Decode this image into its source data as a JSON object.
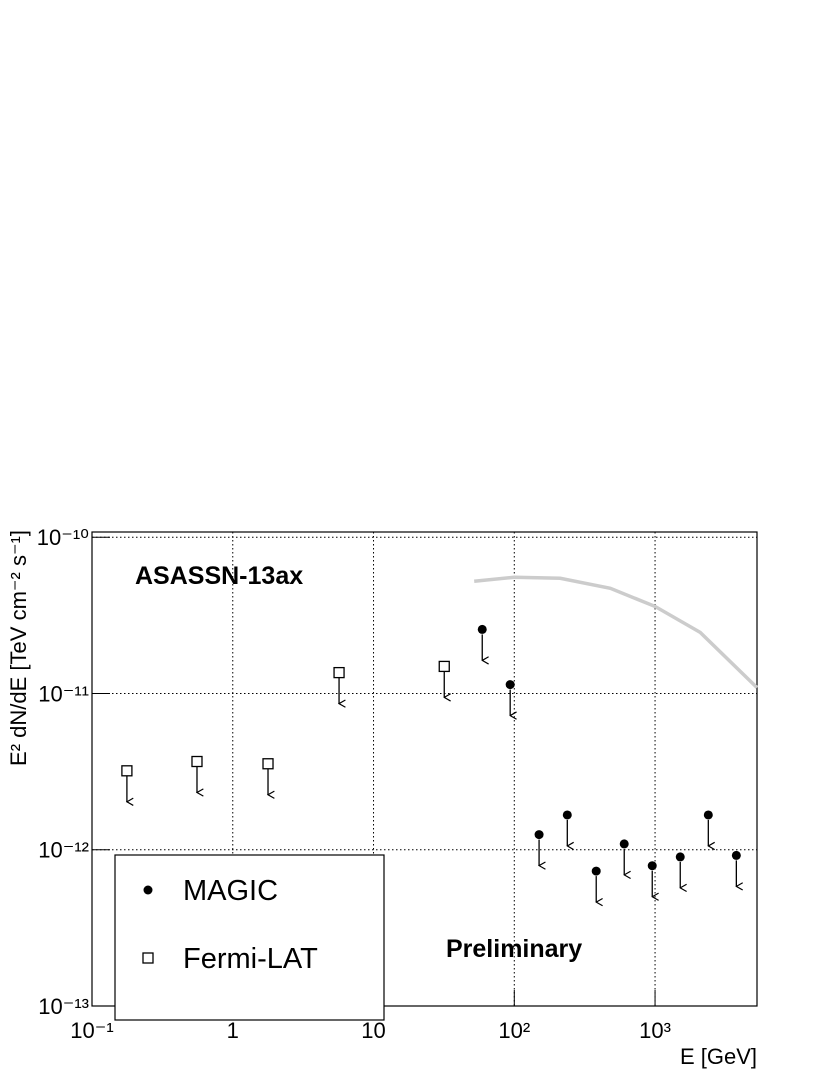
{
  "chart_data": {
    "type": "scatter",
    "annotations": [
      "ASASSN-13ax",
      "Preliminary"
    ],
    "xlabel": "E [GeV]",
    "ylabel": "E² dN/dE [TeV cm⁻² s⁻¹]",
    "log_x": true,
    "log_y": true,
    "grid": true,
    "upper_limits": true,
    "legend": "lower left",
    "xlim": [
      0.1,
      5300
    ],
    "ylim": [
      1e-13,
      1.08e-10
    ],
    "xticks": [
      {
        "value": 0.1,
        "label": "10⁻¹"
      },
      1,
      10,
      {
        "value": 100,
        "label": "10²"
      },
      {
        "value": 1000,
        "label": "10³"
      }
    ],
    "yticks": [
      {
        "value": 1e-13,
        "label": "10⁻¹³"
      },
      {
        "value": 1e-12,
        "label": "10⁻¹²"
      },
      {
        "value": 1e-11,
        "label": "10⁻¹¹"
      },
      {
        "value": 1e-10,
        "label": "10⁻¹⁰"
      }
    ],
    "series": [
      {
        "name": "MAGIC",
        "marker": "circle",
        "color": "#000000",
        "x": [
          59.2,
          93.5,
          150,
          238,
          382,
          604,
          955,
          1510,
          2390,
          3780
        ],
        "values": [
          2.57e-11,
          1.14e-11,
          1.25e-12,
          1.67e-12,
          7.3e-13,
          1.09e-12,
          7.9e-13,
          9e-13,
          1.67e-12,
          9.2e-13
        ]
      },
      {
        "name": "Fermi-LAT",
        "marker": "square",
        "color": "#000000",
        "x": [
          0.177,
          0.557,
          1.78,
          5.69,
          31.8
        ],
        "values": [
          3.2e-12,
          3.67e-12,
          3.55e-12,
          1.36e-11,
          1.49e-11
        ]
      },
      {
        "marker": "line",
        "color": "#cccccc",
        "x": [
          51.9,
          100,
          212,
          481,
          1000,
          2094,
          5300
        ],
        "values": [
          5.22e-11,
          5.55e-11,
          5.46e-11,
          4.71e-11,
          3.61e-11,
          2.46e-11,
          1.09e-11
        ]
      }
    ]
  }
}
